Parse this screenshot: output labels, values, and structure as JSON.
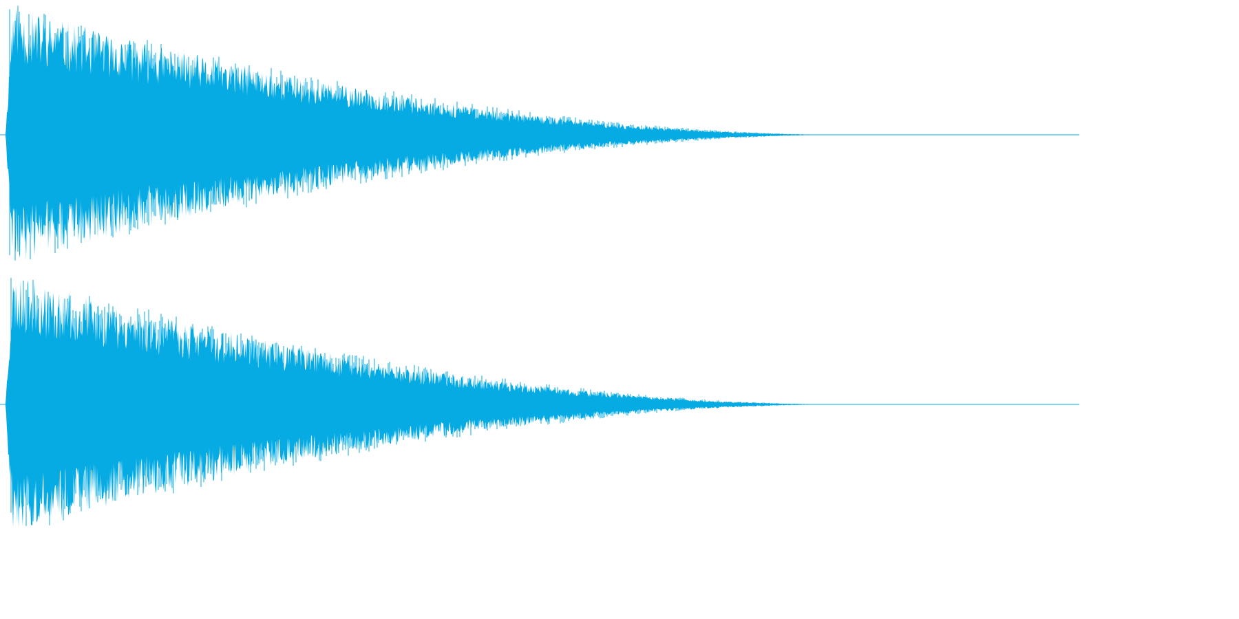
{
  "waveform": {
    "color": "#05abe2",
    "channels": [
      {
        "id": "channel-1",
        "label": ""
      },
      {
        "id": "channel-2",
        "label": ""
      }
    ],
    "envelope_shape": "decaying-impulse",
    "relative_peak_amplitude": 1.0,
    "relative_tail_end_position": 0.78
  }
}
